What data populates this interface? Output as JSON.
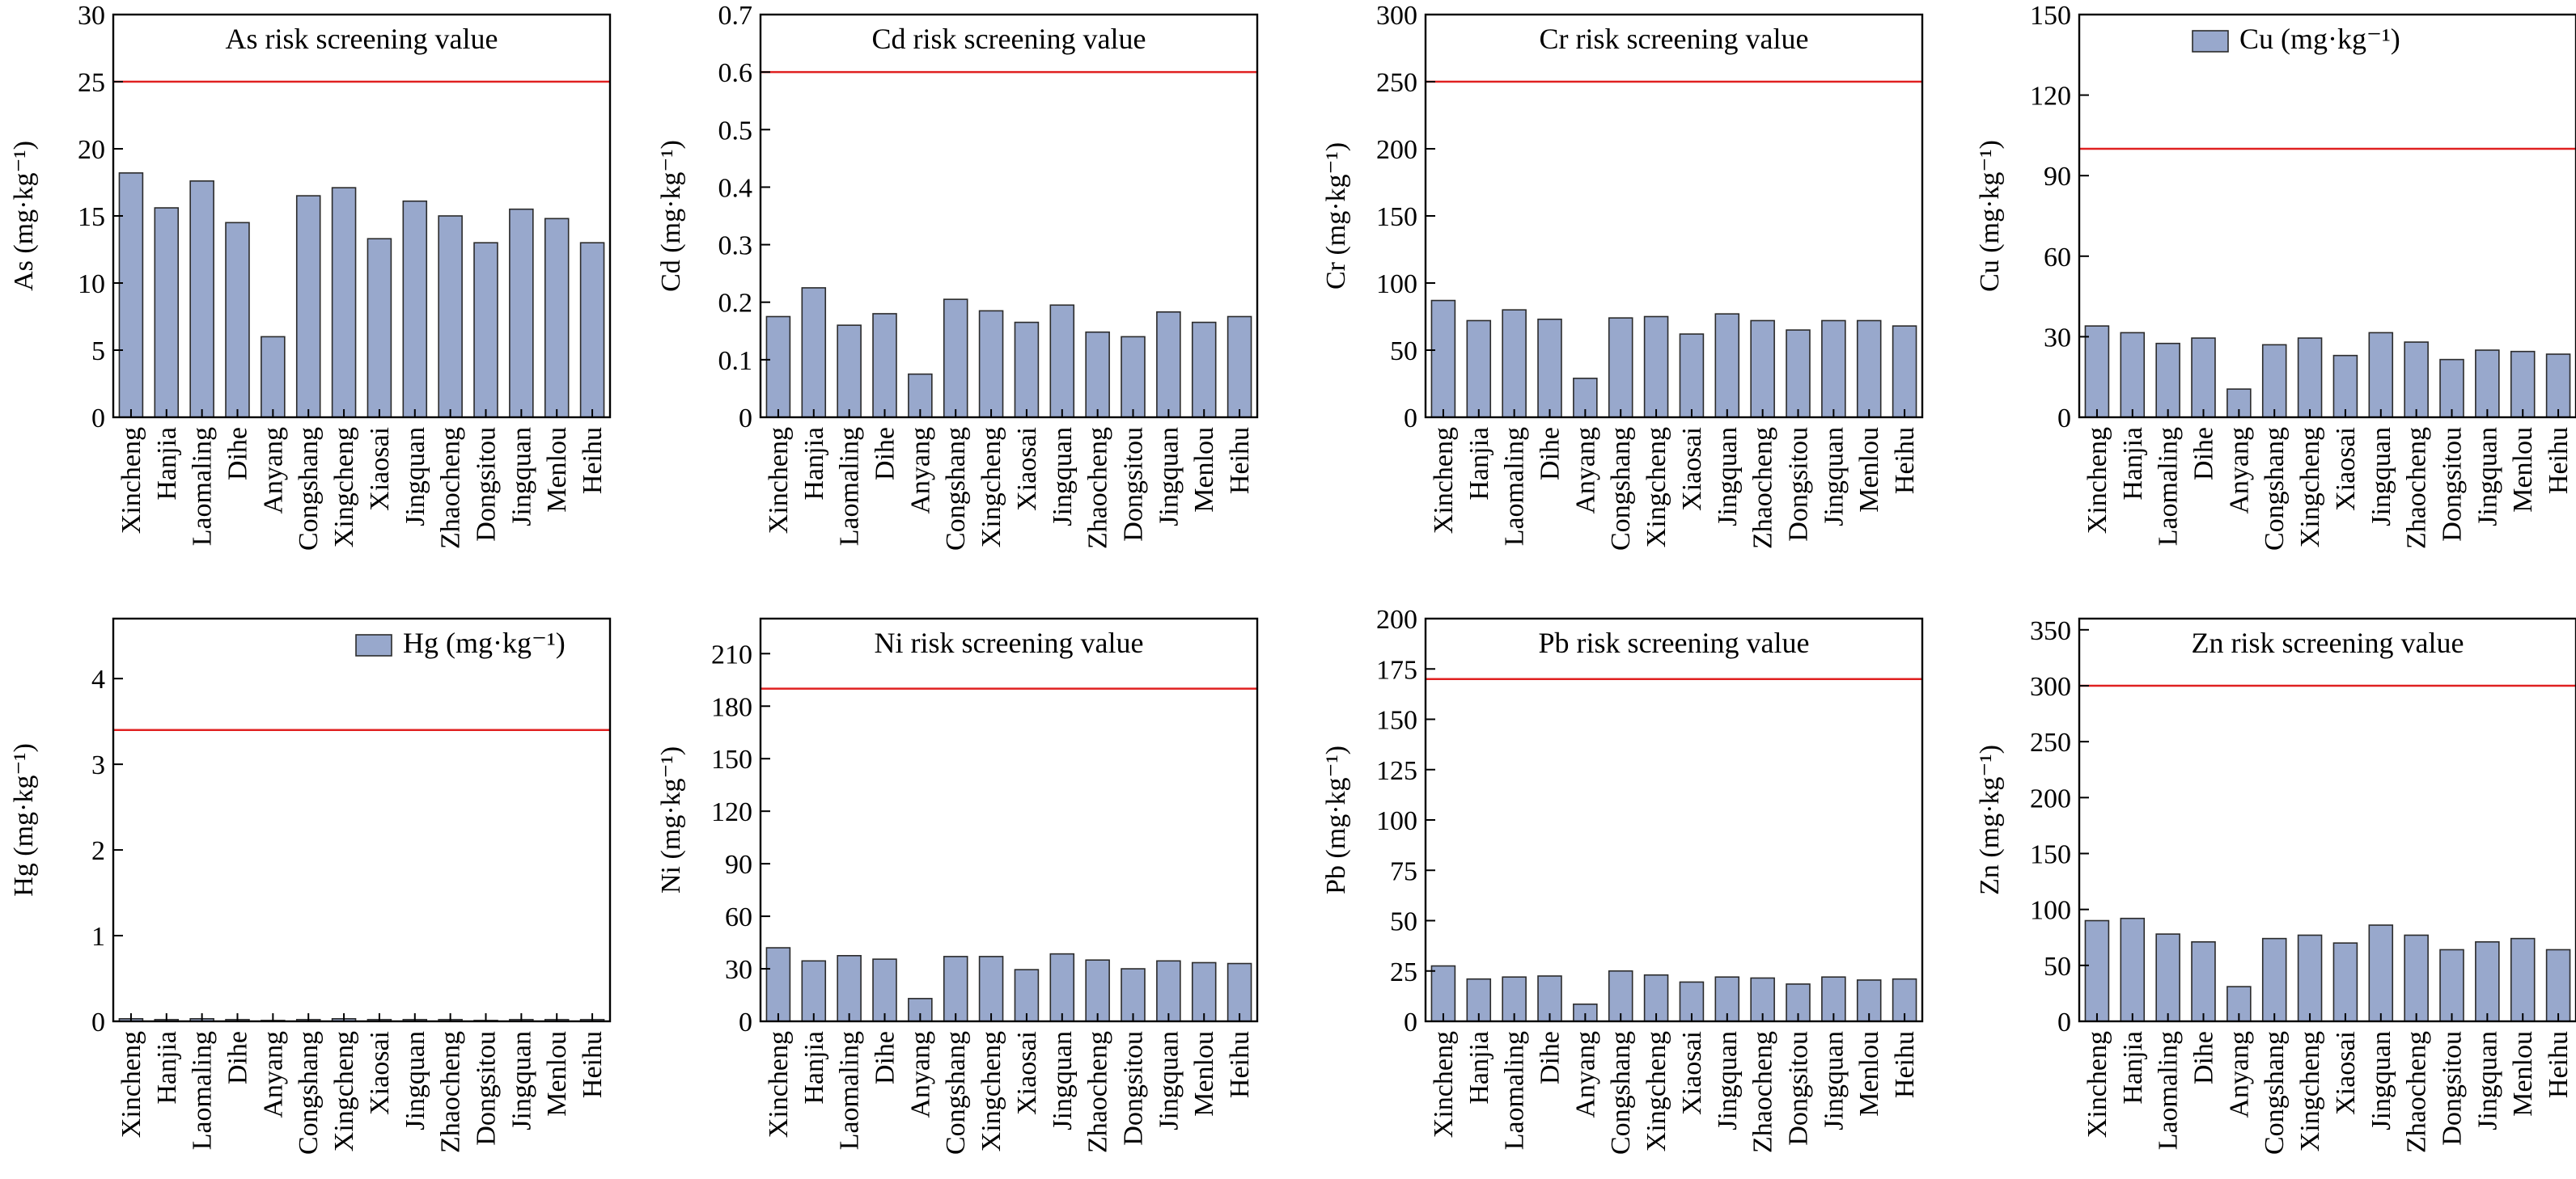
{
  "chart_data": [
    {
      "type": "bar",
      "ylabel": "As (mg·kg⁻¹)",
      "ylim": [
        0,
        30
      ],
      "yticks": [
        0,
        5,
        10,
        15,
        20,
        25,
        30
      ],
      "categories": [
        "Xincheng",
        "Hanjia",
        "Laomaling",
        "Dihe",
        "Anyang",
        "Congshang",
        "Xingcheng",
        "Xiaosai",
        "Jingquan",
        "Zhaocheng",
        "Dongsitou",
        "Jingquan",
        "Menlou",
        "Heihu"
      ],
      "values": [
        18.2,
        15.6,
        17.6,
        14.5,
        6.0,
        16.5,
        17.1,
        13.3,
        16.1,
        15.0,
        13.0,
        15.5,
        14.8,
        13.0
      ],
      "threshold": 25,
      "legend": "As risk screening value",
      "legend_type": "line",
      "bar_color": "#98a8cc",
      "threshold_color": "#e02020"
    },
    {
      "type": "bar",
      "ylabel": "Cd (mg·kg⁻¹)",
      "ylim": [
        0,
        0.7
      ],
      "yticks": [
        0,
        0.1,
        0.2,
        0.3,
        0.4,
        0.5,
        0.6,
        0.7
      ],
      "categories": [
        "Xincheng",
        "Hanjia",
        "Laomaling",
        "Dihe",
        "Anyang",
        "Congshang",
        "Xingcheng",
        "Xiaosai",
        "Jingquan",
        "Zhaocheng",
        "Dongsitou",
        "Jingquan",
        "Menlou",
        "Heihu"
      ],
      "values": [
        0.175,
        0.225,
        0.16,
        0.18,
        0.075,
        0.205,
        0.185,
        0.165,
        0.195,
        0.148,
        0.14,
        0.183,
        0.165,
        0.175
      ],
      "threshold": 0.6,
      "legend": "Cd risk screening value",
      "legend_type": "line",
      "bar_color": "#98a8cc",
      "threshold_color": "#e02020"
    },
    {
      "type": "bar",
      "ylabel": "Cr (mg·kg⁻¹)",
      "ylim": [
        0,
        300
      ],
      "yticks": [
        0,
        50,
        100,
        150,
        200,
        250,
        300
      ],
      "categories": [
        "Xincheng",
        "Hanjia",
        "Laomaling",
        "Dihe",
        "Anyang",
        "Congshang",
        "Xingcheng",
        "Xiaosai",
        "Jingquan",
        "Zhaocheng",
        "Dongsitou",
        "Jingquan",
        "Menlou",
        "Heihu"
      ],
      "values": [
        87,
        72,
        80,
        73,
        29,
        74,
        75,
        62,
        77,
        72,
        65,
        72,
        72,
        68
      ],
      "threshold": 250,
      "legend": "Cr risk screening value",
      "legend_type": "line",
      "bar_color": "#98a8cc",
      "threshold_color": "#e02020"
    },
    {
      "type": "bar",
      "ylabel": "Cu (mg·kg⁻¹)",
      "ylim": [
        0,
        150
      ],
      "yticks": [
        0,
        30,
        60,
        90,
        120,
        150
      ],
      "categories": [
        "Xincheng",
        "Hanjia",
        "Laomaling",
        "Dihe",
        "Anyang",
        "Congshang",
        "Xingcheng",
        "Xiaosai",
        "Jingquan",
        "Zhaocheng",
        "Dongsitou",
        "Jingquan",
        "Menlou",
        "Heihu"
      ],
      "values": [
        34,
        31.5,
        27.5,
        29.5,
        10.5,
        27,
        29.5,
        23,
        31.5,
        28,
        21.5,
        25,
        24.5,
        23.5
      ],
      "threshold": 100,
      "legend": "Cu (mg·kg⁻¹)",
      "legend_type": "bar",
      "bar_color": "#98a8cc",
      "threshold_color": "#e02020"
    },
    {
      "type": "bar",
      "ylabel": "Hg (mg·kg⁻¹)",
      "ylim": [
        0,
        4.7
      ],
      "yticks": [
        0,
        1,
        2,
        3,
        4
      ],
      "categories": [
        "Xincheng",
        "Hanjia",
        "Laomaling",
        "Dihe",
        "Anyang",
        "Congshang",
        "Xingcheng",
        "Xiaosai",
        "Jingquan",
        "Zhaocheng",
        "Dongsitou",
        "Jingquan",
        "Menlou",
        "Heihu"
      ],
      "values": [
        0.03,
        0.02,
        0.03,
        0.02,
        0.01,
        0.02,
        0.03,
        0.02,
        0.02,
        0.02,
        0.01,
        0.02,
        0.02,
        0.02
      ],
      "threshold": 3.4,
      "legend": "Hg (mg·kg⁻¹)",
      "legend_type": "bar",
      "bar_color": "#98a8cc",
      "threshold_color": "#e02020"
    },
    {
      "type": "bar",
      "ylabel": "Ni (mg·kg⁻¹)",
      "ylim": [
        0,
        230
      ],
      "yticks": [
        0,
        30,
        60,
        90,
        120,
        150,
        180,
        210
      ],
      "categories": [
        "Xincheng",
        "Hanjia",
        "Laomaling",
        "Dihe",
        "Anyang",
        "Congshang",
        "Xingcheng",
        "Xiaosai",
        "Jingquan",
        "Zhaocheng",
        "Dongsitou",
        "Jingquan",
        "Menlou",
        "Heihu"
      ],
      "values": [
        42,
        34.5,
        37.5,
        35.5,
        13,
        37,
        37,
        29.5,
        38.5,
        35,
        30,
        34.5,
        33.5,
        33
      ],
      "threshold": 190,
      "legend": "Ni risk screening value",
      "legend_type": "line",
      "bar_color": "#98a8cc",
      "threshold_color": "#e02020"
    },
    {
      "type": "bar",
      "ylabel": "Pb (mg·kg⁻¹)",
      "ylim": [
        0,
        200
      ],
      "yticks": [
        0,
        25,
        50,
        75,
        100,
        125,
        150,
        175,
        200
      ],
      "categories": [
        "Xincheng",
        "Hanjia",
        "Laomaling",
        "Dihe",
        "Anyang",
        "Congshang",
        "Xingcheng",
        "Xiaosai",
        "Jingquan",
        "Zhaocheng",
        "Dongsitou",
        "Jingquan",
        "Menlou",
        "Heihu"
      ],
      "values": [
        27.5,
        21,
        22,
        22.5,
        8.5,
        25,
        23,
        19.5,
        22,
        21.5,
        18.5,
        22,
        20.5,
        21
      ],
      "threshold": 170,
      "legend": "Pb risk screening value",
      "legend_type": "line",
      "bar_color": "#98a8cc",
      "threshold_color": "#e02020"
    },
    {
      "type": "bar",
      "ylabel": "Zn (mg·kg⁻¹)",
      "ylim": [
        0,
        360
      ],
      "yticks": [
        0,
        50,
        100,
        150,
        200,
        250,
        300,
        350
      ],
      "categories": [
        "Xincheng",
        "Hanjia",
        "Laomaling",
        "Dihe",
        "Anyang",
        "Congshang",
        "Xingcheng",
        "Xiaosai",
        "Jingquan",
        "Zhaocheng",
        "Dongsitou",
        "Jingquan",
        "Menlou",
        "Heihu"
      ],
      "values": [
        90,
        92,
        78,
        71,
        31,
        74,
        77,
        70,
        86,
        77,
        64,
        71,
        74,
        64
      ],
      "threshold": 300,
      "legend": "Zn risk screening value",
      "legend_type": "line",
      "bar_color": "#98a8cc",
      "threshold_color": "#e02020"
    }
  ]
}
